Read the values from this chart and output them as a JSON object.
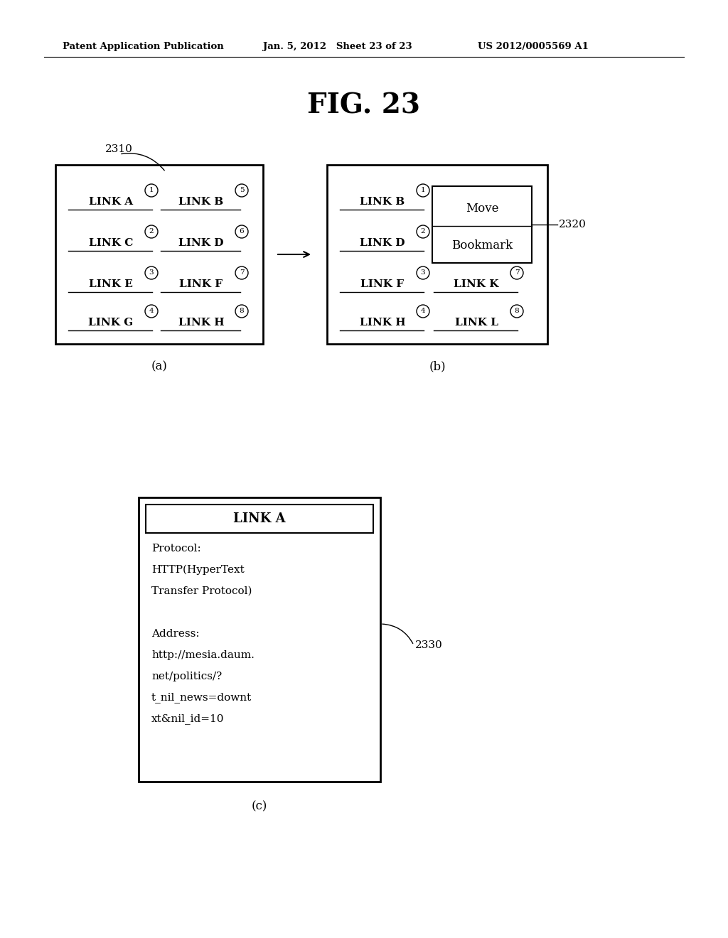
{
  "title": "FIG. 23",
  "header_left": "Patent Application Publication",
  "header_mid": "Jan. 5, 2012   Sheet 23 of 23",
  "header_right": "US 2012/0005569 A1",
  "bg_color": "#ffffff",
  "label_2310": "2310",
  "label_2320": "2320",
  "label_2330": "2330",
  "caption_a": "(a)",
  "caption_b": "(b)",
  "caption_c": "(c)",
  "box_a_links_left": [
    "LINK A",
    "LINK C",
    "LINK E",
    "LINK G"
  ],
  "box_a_links_right": [
    "LINK B",
    "LINK D",
    "LINK F",
    "LINK H"
  ],
  "box_a_nums_left": [
    "1",
    "2",
    "3",
    "4"
  ],
  "box_a_nums_right": [
    "5",
    "6",
    "7",
    "8"
  ],
  "box_b_links_left": [
    "LINK B",
    "LINK D",
    "LINK F",
    "LINK H"
  ],
  "box_b_links_right": [
    "LINK K",
    "LINK L"
  ],
  "box_b_nums_left": [
    "1",
    "2",
    "3",
    "4"
  ],
  "box_b_nums_right": [
    "7",
    "8"
  ],
  "box_b_popup": [
    "Move",
    "Bookmark"
  ],
  "box_c_title": "LINK A",
  "box_c_text_line1": "Protocol:",
  "box_c_text_line2": "HTTP(HyperText",
  "box_c_text_line3": "Transfer Protocol)",
  "box_c_text_line4": "",
  "box_c_text_line5": "Address:",
  "box_c_text_line6": "http://mesia.daum.",
  "box_c_text_line7": "net/politics/?",
  "box_c_text_line8": "t_nil_news=downt",
  "box_c_text_line9": "xt&nil_id=10"
}
